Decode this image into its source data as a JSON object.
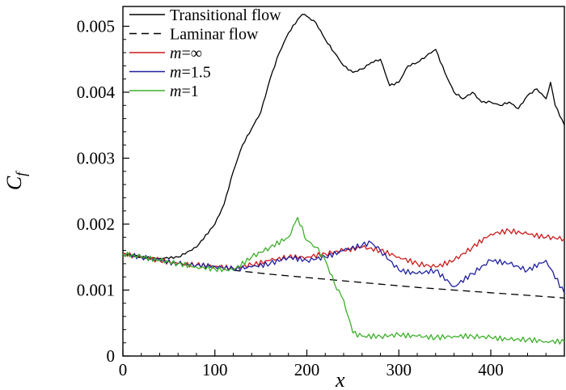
{
  "chart_data": {
    "type": "line",
    "title": "",
    "xlabel": "x",
    "ylabel": "C_f",
    "xlim": [
      0,
      480
    ],
    "ylim": [
      0,
      0.0053
    ],
    "xticks": [
      0,
      100,
      200,
      300,
      400
    ],
    "yticks": [
      0,
      0.001,
      0.002,
      0.003,
      0.004,
      0.005
    ],
    "xtick_labels": [
      "0",
      "100",
      "200",
      "300",
      "400"
    ],
    "ytick_labels": [
      "0",
      "0.001",
      "0.002",
      "0.003",
      "0.004",
      "0.005"
    ],
    "grid": false,
    "legend_position": "top-left",
    "series": [
      {
        "name": "Transitional flow",
        "label_text": "Transitional flow",
        "label_italic_prefix": "",
        "color": "#000000",
        "dash": "solid",
        "x": [
          0,
          20,
          40,
          60,
          80,
          100,
          110,
          120,
          130,
          140,
          150,
          160,
          170,
          180,
          190,
          195,
          200,
          210,
          220,
          230,
          240,
          250,
          260,
          270,
          280,
          290,
          300,
          310,
          320,
          330,
          340,
          350,
          360,
          370,
          380,
          390,
          400,
          410,
          420,
          430,
          440,
          450,
          460,
          465,
          470,
          480
        ],
        "y": [
          0.00155,
          0.0015,
          0.00148,
          0.0015,
          0.00165,
          0.002,
          0.0023,
          0.0028,
          0.0032,
          0.00345,
          0.0037,
          0.0042,
          0.0046,
          0.0049,
          0.0051,
          0.00518,
          0.00515,
          0.00505,
          0.0048,
          0.0046,
          0.0044,
          0.0043,
          0.00435,
          0.00445,
          0.0045,
          0.0041,
          0.00415,
          0.0044,
          0.00445,
          0.00455,
          0.00465,
          0.0043,
          0.004,
          0.0039,
          0.004,
          0.00385,
          0.00385,
          0.0038,
          0.00385,
          0.00375,
          0.00395,
          0.00405,
          0.0039,
          0.00415,
          0.0038,
          0.0035
        ]
      },
      {
        "name": "Laminar flow",
        "label_text": "Laminar flow",
        "label_italic_prefix": "",
        "color": "#000000",
        "dash": "dashed",
        "x": [
          120,
          160,
          200,
          240,
          280,
          320,
          360,
          400,
          440,
          480
        ],
        "y": [
          0.0013,
          0.00124,
          0.00119,
          0.00114,
          0.00109,
          0.00104,
          0.001,
          0.00096,
          0.00092,
          0.00088
        ]
      },
      {
        "name": "m=∞",
        "label_text": "=∞",
        "label_italic_prefix": "m",
        "color": "#cc1a1a",
        "dash": "solid",
        "x": [
          0,
          20,
          40,
          60,
          80,
          100,
          120,
          140,
          160,
          180,
          200,
          220,
          240,
          260,
          280,
          300,
          320,
          340,
          360,
          380,
          400,
          420,
          440,
          460,
          480
        ],
        "y": [
          0.00155,
          0.0015,
          0.00145,
          0.0014,
          0.00138,
          0.00136,
          0.00133,
          0.00138,
          0.00145,
          0.0015,
          0.0015,
          0.00155,
          0.0016,
          0.00165,
          0.0016,
          0.0015,
          0.0014,
          0.00135,
          0.00145,
          0.00165,
          0.00185,
          0.0019,
          0.00185,
          0.0018,
          0.00178
        ]
      },
      {
        "name": "m=1.5",
        "label_text": "=1.5",
        "label_italic_prefix": "m",
        "color": "#1f1fa0",
        "dash": "solid",
        "x": [
          0,
          20,
          40,
          60,
          80,
          100,
          120,
          140,
          160,
          180,
          200,
          220,
          240,
          260,
          270,
          280,
          300,
          320,
          340,
          360,
          380,
          400,
          420,
          440,
          460,
          480
        ],
        "y": [
          0.00155,
          0.0015,
          0.00145,
          0.0014,
          0.00138,
          0.00136,
          0.00132,
          0.00135,
          0.0014,
          0.0015,
          0.00145,
          0.0015,
          0.0016,
          0.00168,
          0.00172,
          0.0016,
          0.0013,
          0.00125,
          0.0013,
          0.00105,
          0.00125,
          0.00145,
          0.0014,
          0.0013,
          0.00145,
          0.00095
        ]
      },
      {
        "name": "m=1",
        "label_text": "=1",
        "label_italic_prefix": "m",
        "color": "#3cb02a",
        "dash": "solid",
        "x": [
          0,
          20,
          40,
          60,
          80,
          100,
          120,
          140,
          160,
          180,
          190,
          200,
          210,
          220,
          230,
          240,
          245,
          250,
          260,
          280,
          300,
          320,
          340,
          360,
          380,
          400,
          420,
          440,
          460,
          480
        ],
        "y": [
          0.00155,
          0.0015,
          0.00145,
          0.0014,
          0.00135,
          0.00132,
          0.0013,
          0.0015,
          0.00165,
          0.0018,
          0.0021,
          0.00175,
          0.00165,
          0.00145,
          0.0011,
          0.00085,
          0.0006,
          0.00035,
          0.0003,
          0.0003,
          0.00032,
          0.0003,
          0.00028,
          0.0003,
          0.0003,
          0.00028,
          0.00025,
          0.00025,
          0.00022,
          0.00022
        ]
      }
    ]
  }
}
